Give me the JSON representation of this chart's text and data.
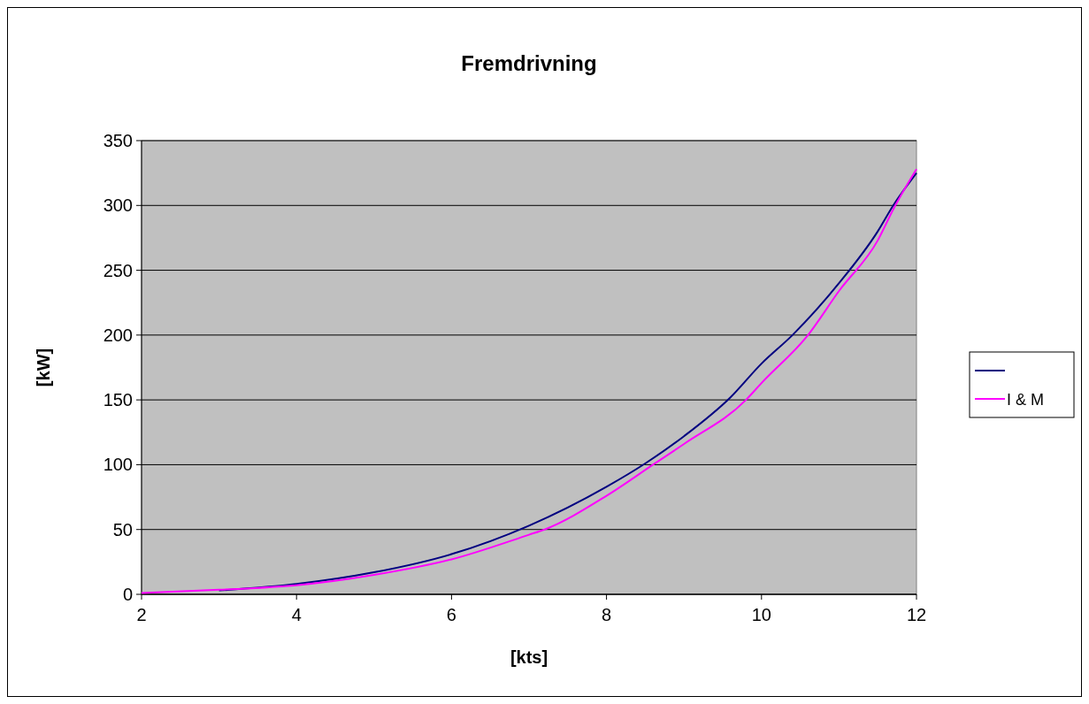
{
  "chart_data": {
    "type": "line",
    "title": "Fremdrivning",
    "xlabel": "[kts]",
    "ylabel": "[kW]",
    "xlim": [
      2,
      12
    ],
    "xticks": [
      2,
      4,
      6,
      8,
      10,
      12
    ],
    "ylim": [
      0,
      350
    ],
    "yticks": [
      0,
      50,
      100,
      150,
      200,
      250,
      300,
      350
    ],
    "grid": "y",
    "legend": "right",
    "marker": "none",
    "line_style": "solid",
    "series": [
      {
        "color": "#000080",
        "x": [
          3,
          4,
          5,
          6,
          7,
          8,
          8.5,
          9,
          9.6,
          10,
          10.4,
          11,
          11.5,
          11.7,
          12
        ],
        "values": [
          3,
          8,
          17,
          31,
          53,
          83,
          101,
          122,
          152,
          178,
          200,
          240,
          280,
          300,
          325
        ]
      },
      {
        "name": "I & M",
        "color": "#ff00ff",
        "x": [
          2,
          3,
          4,
          5,
          6,
          7,
          7.2,
          8,
          8.6,
          9,
          9.8,
          10,
          10.6,
          11,
          11.5,
          11.7,
          12
        ],
        "values": [
          1,
          3.5,
          7,
          15,
          27,
          46,
          50,
          76,
          100,
          116,
          150,
          163,
          200,
          234,
          273,
          297,
          328
        ]
      }
    ]
  }
}
